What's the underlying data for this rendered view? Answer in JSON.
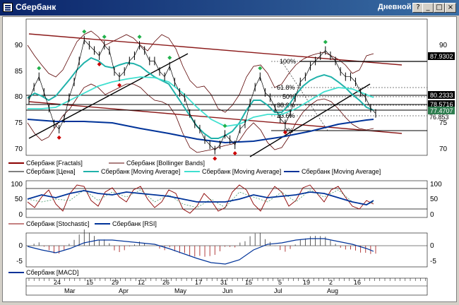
{
  "window": {
    "title": "Сбербанк",
    "period": "Дневной",
    "buttons": {
      "help": "?",
      "minimize": "_",
      "maximize": "□",
      "close": "×"
    }
  },
  "price_panel": {
    "y_ticks": [
      "90",
      "85",
      "80",
      "75",
      "70"
    ],
    "price_flags": [
      {
        "value": "87.9302",
        "color": "#000000"
      },
      {
        "value": "80.2333",
        "color": "#000000"
      },
      {
        "value": "78.5716",
        "color": "#000000"
      },
      {
        "value": "77.4707",
        "color": "#2e7d4f"
      },
      {
        "value": "76.853",
        "color": "#000000"
      }
    ],
    "fib_labels": [
      "100%",
      "61.8%",
      "50%",
      "38.2%",
      "23.6%",
      "0%"
    ],
    "legend": [
      {
        "label": "Сбербанк [Fractals]",
        "color": "#8b0000"
      },
      {
        "label": "Сбербанк [Bollinger Bands]",
        "color": "#5a0000"
      },
      {
        "label": "Сбербанк [Цена]",
        "color": "#000000"
      },
      {
        "label": "Сбербанк [Moving Average]",
        "color": "#20b2aa"
      },
      {
        "label": "Сбербанк [Moving Average]",
        "color": "#40e0d0"
      },
      {
        "label": "Сбербанк [Moving Average]",
        "color": "#003399"
      }
    ]
  },
  "osc_panel": {
    "y_ticks": [
      "100",
      "50",
      "0"
    ],
    "legend": [
      {
        "label": "Сбербанк [Stochastic]",
        "color": "#8b0000"
      },
      {
        "label": "Сбербанк [RSI]",
        "color": "#003399"
      }
    ]
  },
  "macd_panel": {
    "y_ticks": [
      "0",
      "-5"
    ],
    "legend": [
      {
        "label": "Сбербанк [MACD]",
        "color": "#003399"
      }
    ]
  },
  "time_axis": {
    "days": [
      "24",
      "15",
      "29",
      "12",
      "26",
      "17",
      "31",
      "15",
      "5",
      "19",
      "2",
      "16"
    ],
    "months": [
      "Mar",
      "Apr",
      "May",
      "Jun",
      "Jul",
      "Aug"
    ]
  },
  "chart_data": {
    "type": "line",
    "x_axis": "date (daily)",
    "y_range": [
      68,
      94
    ],
    "close_approx": [
      78.5,
      81,
      83,
      80,
      77,
      74,
      73,
      75,
      79,
      82,
      86,
      90,
      89,
      88,
      87,
      89,
      88,
      84,
      83,
      84,
      86,
      87,
      89,
      88,
      86,
      86,
      84,
      83,
      85,
      82,
      80,
      79,
      76,
      74,
      73,
      71,
      70,
      69,
      70,
      72,
      71,
      70,
      73,
      74,
      78,
      81,
      83,
      80,
      79,
      77,
      75,
      74,
      76,
      79,
      82,
      83,
      85,
      86,
      87,
      88,
      87,
      86,
      84,
      83,
      83,
      82,
      80,
      79,
      77,
      76
    ],
    "fibonacci_levels": [
      "100%",
      "61.8%",
      "50%",
      "38.2%",
      "23.6%",
      "0%"
    ]
  }
}
